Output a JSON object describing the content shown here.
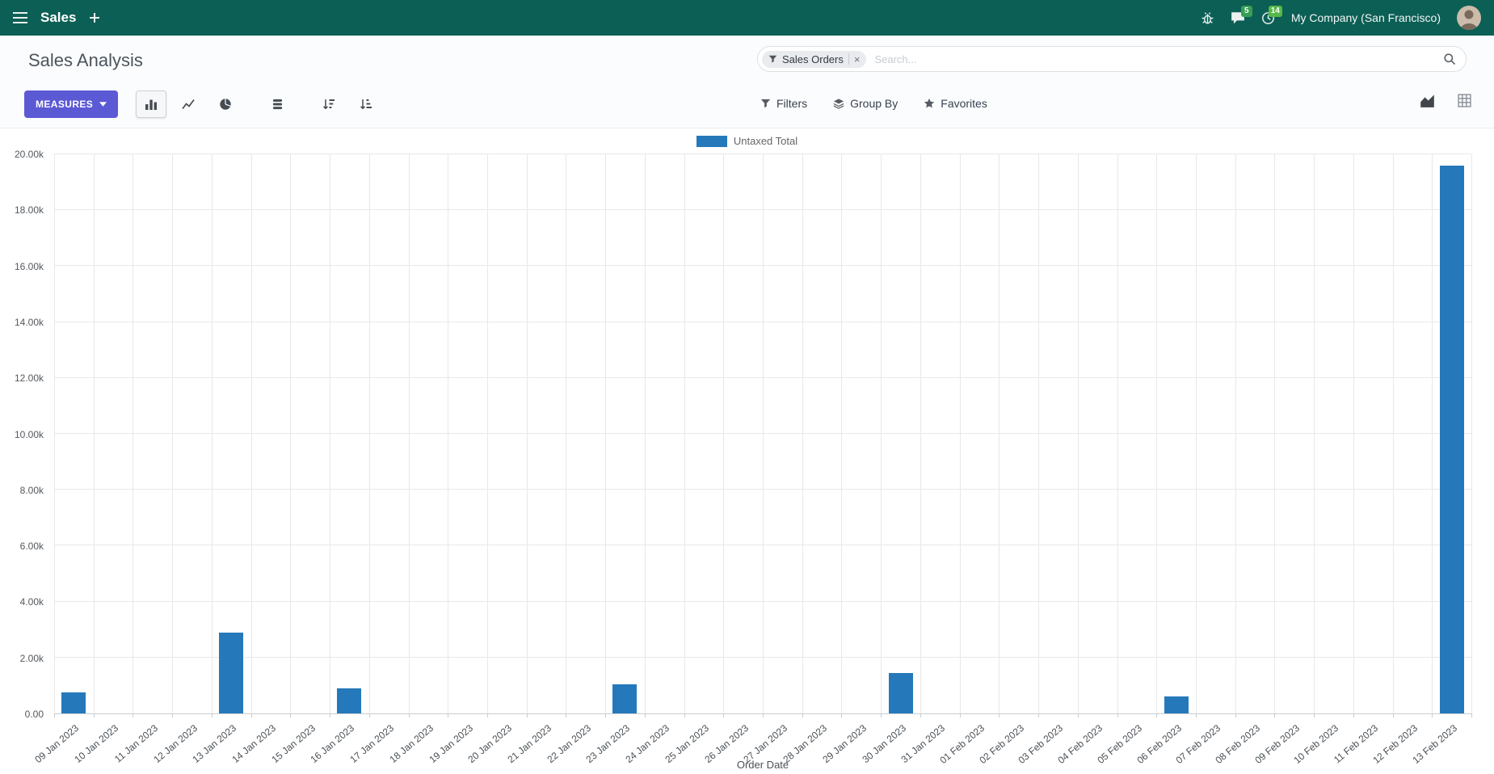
{
  "navbar": {
    "app_name": "Sales",
    "company": "My Company (San Francisco)",
    "messages_count": "5",
    "activities_count": "14"
  },
  "control_panel": {
    "title": "Sales Analysis",
    "search": {
      "facet": "Sales Orders",
      "facet_remove": "×",
      "placeholder": "Search..."
    },
    "measures_label": "MEASURES",
    "filters_label": "Filters",
    "group_by_label": "Group By",
    "favorites_label": "Favorites"
  },
  "colors": {
    "navbar_bg": "#0c5f55",
    "primary_button": "#5b59d4",
    "bar_color": "#2579ba",
    "badge_green": "#379e54"
  },
  "icons": [
    "menu-icon",
    "plus-icon",
    "bug-icon",
    "chat-icon",
    "clock-icon",
    "filter-funnel-icon",
    "search-icon",
    "caret-down-icon",
    "bar-chart-icon",
    "line-chart-icon",
    "pie-chart-icon",
    "stacked-icon",
    "sort-desc-icon",
    "sort-asc-icon",
    "layers-icon",
    "star-icon",
    "area-view-icon",
    "pivot-view-icon",
    "person-icon"
  ],
  "chart_data": {
    "type": "bar",
    "title": "",
    "xlabel": "Order Date",
    "ylabel": "",
    "ylim": [
      0,
      20000
    ],
    "grid": true,
    "legend_position": "top",
    "y_ticks": [
      "0.00",
      "2.00k",
      "4.00k",
      "6.00k",
      "8.00k",
      "10.00k",
      "12.00k",
      "14.00k",
      "16.00k",
      "18.00k",
      "20.00k"
    ],
    "categories": [
      "09 Jan 2023",
      "10 Jan 2023",
      "11 Jan 2023",
      "12 Jan 2023",
      "13 Jan 2023",
      "14 Jan 2023",
      "15 Jan 2023",
      "16 Jan 2023",
      "17 Jan 2023",
      "18 Jan 2023",
      "19 Jan 2023",
      "20 Jan 2023",
      "21 Jan 2023",
      "22 Jan 2023",
      "23 Jan 2023",
      "24 Jan 2023",
      "25 Jan 2023",
      "26 Jan 2023",
      "27 Jan 2023",
      "28 Jan 2023",
      "29 Jan 2023",
      "30 Jan 2023",
      "31 Jan 2023",
      "01 Feb 2023",
      "02 Feb 2023",
      "03 Feb 2023",
      "04 Feb 2023",
      "05 Feb 2023",
      "06 Feb 2023",
      "07 Feb 2023",
      "08 Feb 2023",
      "09 Feb 2023",
      "10 Feb 2023",
      "11 Feb 2023",
      "12 Feb 2023",
      "13 Feb 2023"
    ],
    "series": [
      {
        "name": "Untaxed Total",
        "color": "#2579ba",
        "values": [
          750,
          0,
          0,
          0,
          2900,
          0,
          0,
          900,
          0,
          0,
          0,
          0,
          0,
          0,
          1050,
          0,
          0,
          0,
          0,
          0,
          0,
          1450,
          0,
          0,
          0,
          0,
          0,
          0,
          600,
          0,
          0,
          0,
          0,
          0,
          0,
          19600
        ]
      }
    ]
  }
}
